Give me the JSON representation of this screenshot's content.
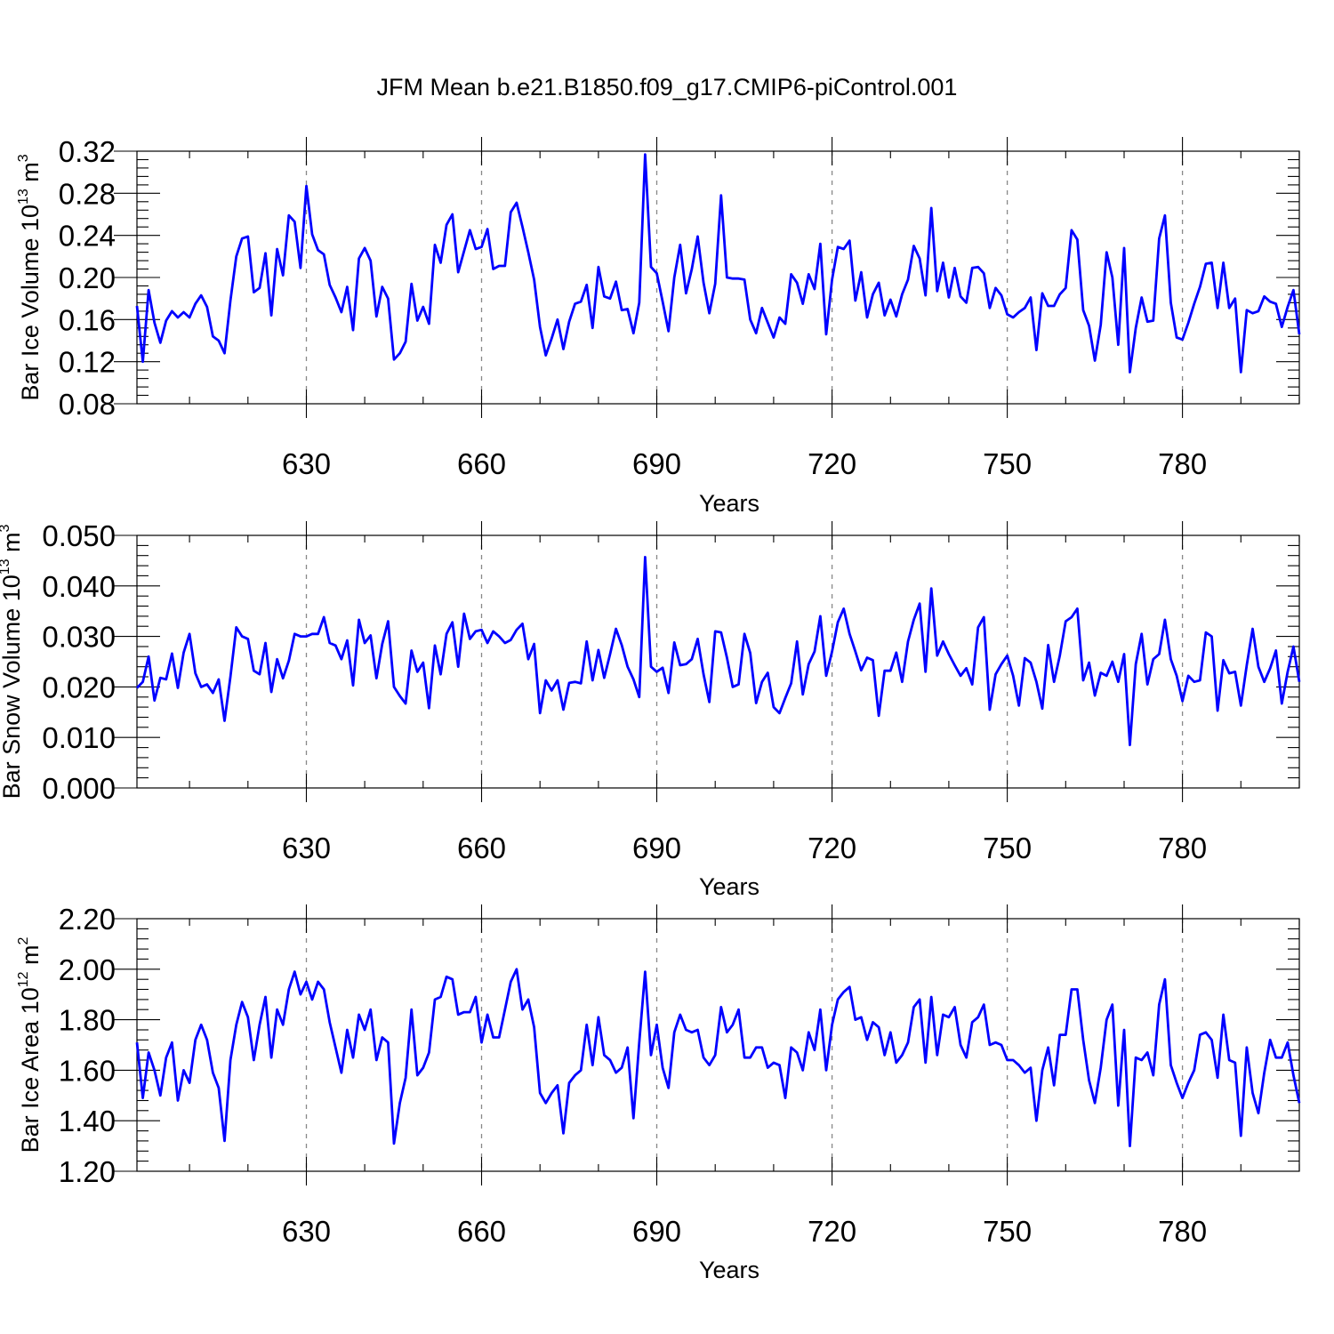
{
  "title": "JFM Mean b.e21.B1850.f09_g17.CMIP6-piControl.001",
  "colors": {
    "line": "#0000ff",
    "grid": "#888888"
  },
  "chart_data": [
    {
      "type": "line",
      "name": "bar-ice-volume",
      "ylabel": {
        "main": "Bar Ice Volume 10",
        "exp": "13",
        "unit": " m",
        "unit_exp": "3"
      },
      "xlabel": "Years",
      "xlim": [
        601,
        800
      ],
      "ylim": [
        0.08,
        0.32
      ],
      "xticks": [
        630,
        660,
        690,
        720,
        750,
        780
      ],
      "xtick_labels": [
        "630",
        "660",
        "690",
        "720",
        "750",
        "780"
      ],
      "yticks": [
        0.08,
        0.12,
        0.16,
        0.2,
        0.24,
        0.28,
        0.32
      ],
      "ytick_labels": [
        "0.08",
        "0.12",
        "0.16",
        "0.20",
        "0.24",
        "0.28",
        "0.32"
      ],
      "series": [
        {
          "name": "Bar Ice Volume",
          "x_start": 601,
          "values": [
            0.173,
            0.12,
            0.188,
            0.157,
            0.138,
            0.159,
            0.168,
            0.162,
            0.167,
            0.162,
            0.175,
            0.183,
            0.172,
            0.144,
            0.14,
            0.128,
            0.178,
            0.22,
            0.237,
            0.239,
            0.186,
            0.19,
            0.223,
            0.164,
            0.227,
            0.202,
            0.259,
            0.253,
            0.209,
            0.287,
            0.241,
            0.226,
            0.222,
            0.193,
            0.181,
            0.167,
            0.191,
            0.15,
            0.218,
            0.228,
            0.216,
            0.163,
            0.191,
            0.18,
            0.122,
            0.128,
            0.139,
            0.194,
            0.159,
            0.172,
            0.156,
            0.231,
            0.214,
            0.25,
            0.26,
            0.205,
            0.225,
            0.245,
            0.227,
            0.229,
            0.246,
            0.208,
            0.211,
            0.211,
            0.262,
            0.271,
            0.248,
            0.224,
            0.198,
            0.153,
            0.126,
            0.142,
            0.16,
            0.132,
            0.158,
            0.175,
            0.177,
            0.193,
            0.152,
            0.21,
            0.182,
            0.18,
            0.196,
            0.169,
            0.17,
            0.147,
            0.176,
            0.317,
            0.21,
            0.204,
            0.177,
            0.149,
            0.2,
            0.231,
            0.185,
            0.208,
            0.239,
            0.195,
            0.166,
            0.194,
            0.278,
            0.2,
            0.199,
            0.199,
            0.198,
            0.16,
            0.147,
            0.171,
            0.157,
            0.143,
            0.162,
            0.156,
            0.203,
            0.195,
            0.175,
            0.203,
            0.189,
            0.232,
            0.146,
            0.198,
            0.229,
            0.227,
            0.235,
            0.178,
            0.205,
            0.162,
            0.184,
            0.195,
            0.164,
            0.179,
            0.163,
            0.184,
            0.198,
            0.23,
            0.218,
            0.183,
            0.266,
            0.187,
            0.214,
            0.181,
            0.209,
            0.182,
            0.176,
            0.209,
            0.21,
            0.204,
            0.171,
            0.19,
            0.183,
            0.165,
            0.162,
            0.167,
            0.171,
            0.181,
            0.131,
            0.185,
            0.173,
            0.173,
            0.184,
            0.19,
            0.245,
            0.236,
            0.169,
            0.154,
            0.121,
            0.155,
            0.224,
            0.2,
            0.136,
            0.228,
            0.11,
            0.152,
            0.181,
            0.158,
            0.159,
            0.237,
            0.259,
            0.176,
            0.143,
            0.141,
            0.157,
            0.175,
            0.191,
            0.213,
            0.214,
            0.171,
            0.214,
            0.171,
            0.18,
            0.11,
            0.169,
            0.166,
            0.168,
            0.182,
            0.177,
            0.175,
            0.153,
            0.172,
            0.188,
            0.146
          ]
        }
      ]
    },
    {
      "type": "line",
      "name": "bar-snow-volume",
      "ylabel": {
        "main": "Bar Snow Volume 10",
        "exp": "13",
        "unit": " m",
        "unit_exp": "3"
      },
      "xlabel": "Years",
      "xlim": [
        601,
        800
      ],
      "ylim": [
        0.0,
        0.05
      ],
      "xticks": [
        630,
        660,
        690,
        720,
        750,
        780
      ],
      "xtick_labels": [
        "630",
        "660",
        "690",
        "720",
        "750",
        "780"
      ],
      "yticks": [
        0.0,
        0.01,
        0.02,
        0.03,
        0.04,
        0.05
      ],
      "ytick_labels": [
        "0.000",
        "0.010",
        "0.020",
        "0.030",
        "0.040",
        "0.050"
      ],
      "series": [
        {
          "name": "Bar Snow Volume",
          "x_start": 601,
          "values": [
            0.0198,
            0.021,
            0.026,
            0.0173,
            0.0218,
            0.0215,
            0.0266,
            0.0198,
            0.0268,
            0.0305,
            0.0227,
            0.02,
            0.0205,
            0.0188,
            0.0215,
            0.0133,
            0.022,
            0.0318,
            0.03,
            0.0295,
            0.0232,
            0.0225,
            0.0287,
            0.019,
            0.0255,
            0.0217,
            0.0252,
            0.0305,
            0.03,
            0.03,
            0.0305,
            0.0305,
            0.0338,
            0.0287,
            0.0282,
            0.0255,
            0.0292,
            0.0203,
            0.0333,
            0.0287,
            0.0302,
            0.0217,
            0.0285,
            0.033,
            0.02,
            0.0182,
            0.0167,
            0.0272,
            0.023,
            0.0248,
            0.0158,
            0.0282,
            0.0225,
            0.0305,
            0.0328,
            0.024,
            0.0345,
            0.0295,
            0.031,
            0.0313,
            0.0287,
            0.031,
            0.03,
            0.0287,
            0.0293,
            0.0313,
            0.0325,
            0.0255,
            0.0285,
            0.0148,
            0.0213,
            0.0193,
            0.0213,
            0.0155,
            0.0208,
            0.021,
            0.0207,
            0.029,
            0.0213,
            0.0273,
            0.0218,
            0.0265,
            0.0315,
            0.0283,
            0.024,
            0.0215,
            0.018,
            0.0457,
            0.024,
            0.023,
            0.0238,
            0.0188,
            0.0288,
            0.0243,
            0.0245,
            0.0255,
            0.0295,
            0.0225,
            0.017,
            0.031,
            0.0308,
            0.0258,
            0.02,
            0.0205,
            0.0305,
            0.0267,
            0.0168,
            0.021,
            0.0228,
            0.016,
            0.0148,
            0.0178,
            0.0207,
            0.029,
            0.0185,
            0.0245,
            0.027,
            0.034,
            0.0222,
            0.027,
            0.0328,
            0.0355,
            0.0305,
            0.027,
            0.0233,
            0.0258,
            0.0253,
            0.0143,
            0.0232,
            0.0232,
            0.0268,
            0.021,
            0.029,
            0.0333,
            0.0365,
            0.023,
            0.0395,
            0.0262,
            0.029,
            0.0265,
            0.0243,
            0.0222,
            0.0237,
            0.0205,
            0.0318,
            0.0338,
            0.0155,
            0.0225,
            0.0245,
            0.0262,
            0.0222,
            0.0163,
            0.0257,
            0.0248,
            0.021,
            0.0157,
            0.0283,
            0.021,
            0.0262,
            0.033,
            0.0338,
            0.0355,
            0.0213,
            0.0248,
            0.0183,
            0.0228,
            0.0222,
            0.025,
            0.021,
            0.0265,
            0.0085,
            0.0245,
            0.0305,
            0.0205,
            0.0255,
            0.0265,
            0.0333,
            0.0255,
            0.0222,
            0.0172,
            0.0222,
            0.021,
            0.0213,
            0.0308,
            0.03,
            0.0153,
            0.0253,
            0.0227,
            0.023,
            0.0163,
            0.0243,
            0.0315,
            0.024,
            0.021,
            0.0237,
            0.0272,
            0.0167,
            0.023,
            0.028,
            0.021
          ]
        }
      ]
    },
    {
      "type": "line",
      "name": "bar-ice-area",
      "ylabel": {
        "main": "Bar Ice Area 10",
        "exp": "12",
        "unit": " m",
        "unit_exp": "2"
      },
      "xlabel": "Years",
      "xlim": [
        601,
        800
      ],
      "ylim": [
        1.2,
        2.2
      ],
      "xticks": [
        630,
        660,
        690,
        720,
        750,
        780
      ],
      "xtick_labels": [
        "630",
        "660",
        "690",
        "720",
        "750",
        "780"
      ],
      "yticks": [
        1.2,
        1.4,
        1.6,
        1.8,
        2.0,
        2.2
      ],
      "ytick_labels": [
        "1.20",
        "1.40",
        "1.60",
        "1.80",
        "2.00",
        "2.20"
      ],
      "series": [
        {
          "name": "Bar Ice Area",
          "x_start": 601,
          "values": [
            1.71,
            1.49,
            1.67,
            1.6,
            1.5,
            1.65,
            1.71,
            1.48,
            1.6,
            1.55,
            1.72,
            1.78,
            1.72,
            1.59,
            1.53,
            1.32,
            1.64,
            1.78,
            1.87,
            1.81,
            1.64,
            1.78,
            1.89,
            1.65,
            1.84,
            1.78,
            1.92,
            1.99,
            1.9,
            1.95,
            1.88,
            1.95,
            1.92,
            1.79,
            1.69,
            1.59,
            1.76,
            1.65,
            1.82,
            1.76,
            1.84,
            1.64,
            1.73,
            1.71,
            1.31,
            1.47,
            1.57,
            1.84,
            1.58,
            1.61,
            1.67,
            1.88,
            1.89,
            1.97,
            1.96,
            1.82,
            1.83,
            1.83,
            1.89,
            1.71,
            1.82,
            1.73,
            1.73,
            1.84,
            1.95,
            2.0,
            1.84,
            1.88,
            1.77,
            1.51,
            1.47,
            1.51,
            1.54,
            1.35,
            1.55,
            1.58,
            1.6,
            1.78,
            1.62,
            1.81,
            1.66,
            1.64,
            1.59,
            1.61,
            1.69,
            1.41,
            1.71,
            1.99,
            1.66,
            1.78,
            1.61,
            1.53,
            1.75,
            1.82,
            1.76,
            1.75,
            1.76,
            1.65,
            1.62,
            1.66,
            1.85,
            1.75,
            1.78,
            1.84,
            1.65,
            1.65,
            1.69,
            1.69,
            1.61,
            1.63,
            1.62,
            1.49,
            1.69,
            1.67,
            1.6,
            1.75,
            1.68,
            1.84,
            1.6,
            1.78,
            1.88,
            1.91,
            1.93,
            1.8,
            1.81,
            1.72,
            1.79,
            1.77,
            1.66,
            1.75,
            1.63,
            1.66,
            1.71,
            1.85,
            1.88,
            1.63,
            1.89,
            1.66,
            1.82,
            1.81,
            1.85,
            1.7,
            1.65,
            1.79,
            1.81,
            1.86,
            1.7,
            1.71,
            1.7,
            1.64,
            1.64,
            1.62,
            1.59,
            1.61,
            1.4,
            1.6,
            1.69,
            1.54,
            1.74,
            1.74,
            1.92,
            1.92,
            1.72,
            1.56,
            1.47,
            1.61,
            1.8,
            1.86,
            1.46,
            1.76,
            1.3,
            1.65,
            1.64,
            1.67,
            1.58,
            1.86,
            1.96,
            1.62,
            1.55,
            1.49,
            1.55,
            1.6,
            1.74,
            1.75,
            1.72,
            1.57,
            1.82,
            1.64,
            1.63,
            1.34,
            1.69,
            1.51,
            1.43,
            1.59,
            1.72,
            1.65,
            1.65,
            1.71,
            1.58,
            1.47
          ]
        }
      ]
    }
  ]
}
